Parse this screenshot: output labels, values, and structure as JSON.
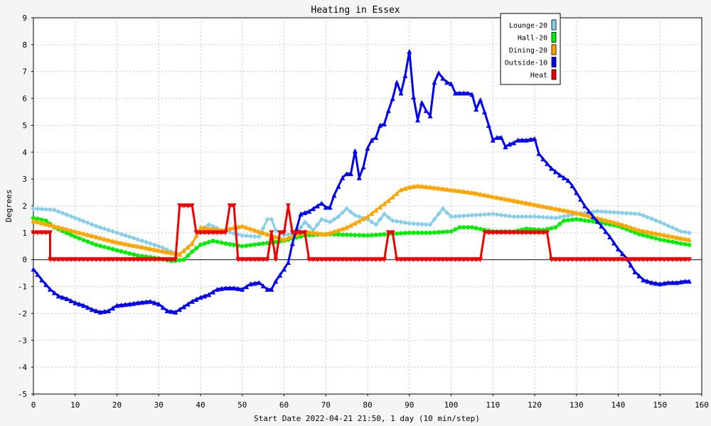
{
  "chart_data": {
    "type": "line",
    "title": "Heating in Essex",
    "xlabel": "Start Date 2022-04-21 21:50, 1 day (10 min/step)",
    "ylabel": "Degrees",
    "xlim": [
      0,
      160
    ],
    "ylim": [
      -5,
      9
    ],
    "xticks": [
      0,
      10,
      20,
      30,
      40,
      50,
      60,
      70,
      80,
      90,
      100,
      110,
      120,
      130,
      140,
      150,
      160
    ],
    "yticks": [
      -5,
      -4,
      -3,
      -2,
      -1,
      0,
      1,
      2,
      3,
      4,
      5,
      6,
      7,
      8,
      9
    ],
    "grid": true,
    "legend_position": "top-right",
    "series": [
      {
        "name": "Lounge-20",
        "color": "#87ceeb",
        "marker": "diamond",
        "points": [
          [
            0,
            1.9
          ],
          [
            5,
            1.85
          ],
          [
            10,
            1.55
          ],
          [
            15,
            1.25
          ],
          [
            20,
            1.0
          ],
          [
            25,
            0.75
          ],
          [
            30,
            0.5
          ],
          [
            33,
            0.3
          ],
          [
            35,
            0.2
          ],
          [
            38,
            0.6
          ],
          [
            40,
            1.1
          ],
          [
            42,
            1.3
          ],
          [
            45,
            1.1
          ],
          [
            50,
            0.9
          ],
          [
            54,
            0.85
          ],
          [
            56,
            1.5
          ],
          [
            57,
            1.5
          ],
          [
            58,
            1.1
          ],
          [
            60,
            0.9
          ],
          [
            63,
            1.0
          ],
          [
            65,
            1.4
          ],
          [
            67,
            1.1
          ],
          [
            69,
            1.5
          ],
          [
            71,
            1.4
          ],
          [
            73,
            1.6
          ],
          [
            75,
            1.9
          ],
          [
            77,
            1.65
          ],
          [
            80,
            1.5
          ],
          [
            82,
            1.3
          ],
          [
            84,
            1.7
          ],
          [
            86,
            1.45
          ],
          [
            90,
            1.35
          ],
          [
            95,
            1.3
          ],
          [
            98,
            1.9
          ],
          [
            100,
            1.6
          ],
          [
            105,
            1.65
          ],
          [
            110,
            1.7
          ],
          [
            115,
            1.6
          ],
          [
            120,
            1.6
          ],
          [
            125,
            1.55
          ],
          [
            130,
            1.7
          ],
          [
            135,
            1.8
          ],
          [
            140,
            1.75
          ],
          [
            145,
            1.7
          ],
          [
            150,
            1.4
          ],
          [
            155,
            1.05
          ],
          [
            157,
            1.0
          ]
        ]
      },
      {
        "name": "Hall-20",
        "color": "#00ee00",
        "marker": "circle",
        "points": [
          [
            0,
            1.55
          ],
          [
            3,
            1.45
          ],
          [
            5,
            1.2
          ],
          [
            10,
            0.85
          ],
          [
            15,
            0.55
          ],
          [
            20,
            0.35
          ],
          [
            25,
            0.15
          ],
          [
            30,
            0.05
          ],
          [
            33,
            -0.05
          ],
          [
            36,
            0.0
          ],
          [
            38,
            0.3
          ],
          [
            40,
            0.55
          ],
          [
            43,
            0.7
          ],
          [
            46,
            0.6
          ],
          [
            50,
            0.5
          ],
          [
            55,
            0.6
          ],
          [
            60,
            0.7
          ],
          [
            65,
            0.9
          ],
          [
            70,
            0.95
          ],
          [
            80,
            0.9
          ],
          [
            85,
            0.95
          ],
          [
            90,
            1.0
          ],
          [
            95,
            1.0
          ],
          [
            100,
            1.05
          ],
          [
            102,
            1.2
          ],
          [
            105,
            1.2
          ],
          [
            110,
            1.05
          ],
          [
            115,
            1.05
          ],
          [
            118,
            1.15
          ],
          [
            122,
            1.1
          ],
          [
            125,
            1.2
          ],
          [
            127,
            1.45
          ],
          [
            130,
            1.5
          ],
          [
            135,
            1.4
          ],
          [
            140,
            1.25
          ],
          [
            145,
            0.95
          ],
          [
            150,
            0.75
          ],
          [
            155,
            0.6
          ],
          [
            157,
            0.55
          ]
        ]
      },
      {
        "name": "Dining-20",
        "color": "#ffa500",
        "marker": "triangle",
        "points": [
          [
            0,
            1.45
          ],
          [
            5,
            1.25
          ],
          [
            10,
            1.05
          ],
          [
            15,
            0.85
          ],
          [
            20,
            0.65
          ],
          [
            25,
            0.5
          ],
          [
            30,
            0.35
          ],
          [
            35,
            0.2
          ],
          [
            38,
            0.6
          ],
          [
            40,
            1.2
          ],
          [
            45,
            1.1
          ],
          [
            50,
            1.25
          ],
          [
            55,
            1.0
          ],
          [
            60,
            0.75
          ],
          [
            65,
            1.05
          ],
          [
            70,
            0.95
          ],
          [
            75,
            1.2
          ],
          [
            80,
            1.6
          ],
          [
            85,
            2.2
          ],
          [
            88,
            2.6
          ],
          [
            90,
            2.7
          ],
          [
            92,
            2.75
          ],
          [
            95,
            2.7
          ],
          [
            100,
            2.6
          ],
          [
            105,
            2.5
          ],
          [
            110,
            2.35
          ],
          [
            115,
            2.2
          ],
          [
            120,
            2.05
          ],
          [
            125,
            1.9
          ],
          [
            130,
            1.75
          ],
          [
            135,
            1.55
          ],
          [
            140,
            1.35
          ],
          [
            145,
            1.1
          ],
          [
            150,
            0.95
          ],
          [
            155,
            0.8
          ],
          [
            157,
            0.75
          ]
        ]
      },
      {
        "name": "Outside-10",
        "color": "#0000ee",
        "marker": "triangle",
        "points": [
          [
            0,
            -0.35
          ],
          [
            2,
            -0.75
          ],
          [
            4,
            -1.1
          ],
          [
            6,
            -1.35
          ],
          [
            8,
            -1.45
          ],
          [
            10,
            -1.6
          ],
          [
            12,
            -1.7
          ],
          [
            14,
            -1.85
          ],
          [
            16,
            -1.95
          ],
          [
            18,
            -1.9
          ],
          [
            20,
            -1.7
          ],
          [
            23,
            -1.65
          ],
          [
            25,
            -1.6
          ],
          [
            28,
            -1.55
          ],
          [
            30,
            -1.65
          ],
          [
            32,
            -1.9
          ],
          [
            34,
            -1.95
          ],
          [
            36,
            -1.75
          ],
          [
            38,
            -1.55
          ],
          [
            40,
            -1.4
          ],
          [
            42,
            -1.3
          ],
          [
            44,
            -1.1
          ],
          [
            46,
            -1.05
          ],
          [
            48,
            -1.05
          ],
          [
            50,
            -1.1
          ],
          [
            52,
            -0.9
          ],
          [
            54,
            -0.85
          ],
          [
            56,
            -1.1
          ],
          [
            57,
            -1.1
          ],
          [
            58,
            -0.8
          ],
          [
            60,
            -0.35
          ],
          [
            61,
            -0.1
          ],
          [
            62,
            0.6
          ],
          [
            64,
            1.7
          ],
          [
            66,
            1.8
          ],
          [
            67,
            1.9
          ],
          [
            69,
            2.1
          ],
          [
            70,
            1.95
          ],
          [
            71,
            1.95
          ],
          [
            72,
            2.4
          ],
          [
            74,
            3.05
          ],
          [
            75,
            3.2
          ],
          [
            76,
            3.2
          ],
          [
            77,
            4.05
          ],
          [
            78,
            3.05
          ],
          [
            79,
            3.45
          ],
          [
            80,
            4.15
          ],
          [
            81,
            4.45
          ],
          [
            82,
            4.55
          ],
          [
            83,
            5.0
          ],
          [
            84,
            5.05
          ],
          [
            85,
            5.55
          ],
          [
            86,
            6.0
          ],
          [
            87,
            6.6
          ],
          [
            88,
            6.2
          ],
          [
            89,
            6.85
          ],
          [
            90,
            7.75
          ],
          [
            91,
            6.05
          ],
          [
            92,
            5.2
          ],
          [
            93,
            5.85
          ],
          [
            94,
            5.55
          ],
          [
            95,
            5.35
          ],
          [
            96,
            6.6
          ],
          [
            97,
            6.95
          ],
          [
            98,
            6.75
          ],
          [
            99,
            6.6
          ],
          [
            100,
            6.55
          ],
          [
            101,
            6.2
          ],
          [
            102,
            6.2
          ],
          [
            103,
            6.2
          ],
          [
            104,
            6.2
          ],
          [
            105,
            6.15
          ],
          [
            106,
            5.6
          ],
          [
            107,
            5.95
          ],
          [
            108,
            5.5
          ],
          [
            109,
            5.0
          ],
          [
            110,
            4.45
          ],
          [
            111,
            4.55
          ],
          [
            112,
            4.55
          ],
          [
            113,
            4.2
          ],
          [
            114,
            4.3
          ],
          [
            115,
            4.35
          ],
          [
            116,
            4.45
          ],
          [
            118,
            4.45
          ],
          [
            120,
            4.5
          ],
          [
            121,
            3.95
          ],
          [
            122,
            3.75
          ],
          [
            124,
            3.4
          ],
          [
            126,
            3.15
          ],
          [
            128,
            2.95
          ],
          [
            129,
            2.75
          ],
          [
            130,
            2.5
          ],
          [
            132,
            2.0
          ],
          [
            134,
            1.6
          ],
          [
            136,
            1.25
          ],
          [
            138,
            0.85
          ],
          [
            140,
            0.4
          ],
          [
            142,
            0.05
          ],
          [
            144,
            -0.45
          ],
          [
            146,
            -0.75
          ],
          [
            148,
            -0.85
          ],
          [
            150,
            -0.9
          ],
          [
            152,
            -0.85
          ],
          [
            154,
            -0.85
          ],
          [
            156,
            -0.8
          ],
          [
            157,
            -0.8
          ]
        ]
      },
      {
        "name": "Heat",
        "color": "#ee0000",
        "marker": "triangle-down",
        "points": [
          [
            0,
            1
          ],
          [
            4,
            1
          ],
          [
            4,
            0
          ],
          [
            34,
            0
          ],
          [
            35,
            2
          ],
          [
            38,
            2
          ],
          [
            39,
            1
          ],
          [
            46,
            1
          ],
          [
            47,
            2
          ],
          [
            48,
            2
          ],
          [
            49,
            0
          ],
          [
            56,
            0
          ],
          [
            57,
            1
          ],
          [
            58,
            0
          ],
          [
            59,
            1
          ],
          [
            60,
            1
          ],
          [
            61,
            2
          ],
          [
            62,
            1
          ],
          [
            65,
            1
          ],
          [
            66,
            0
          ],
          [
            84,
            0
          ],
          [
            85,
            1
          ],
          [
            86,
            1
          ],
          [
            87,
            0
          ],
          [
            107,
            0
          ],
          [
            108,
            1
          ],
          [
            123,
            1
          ],
          [
            124,
            0
          ],
          [
            157,
            0
          ]
        ]
      }
    ]
  }
}
